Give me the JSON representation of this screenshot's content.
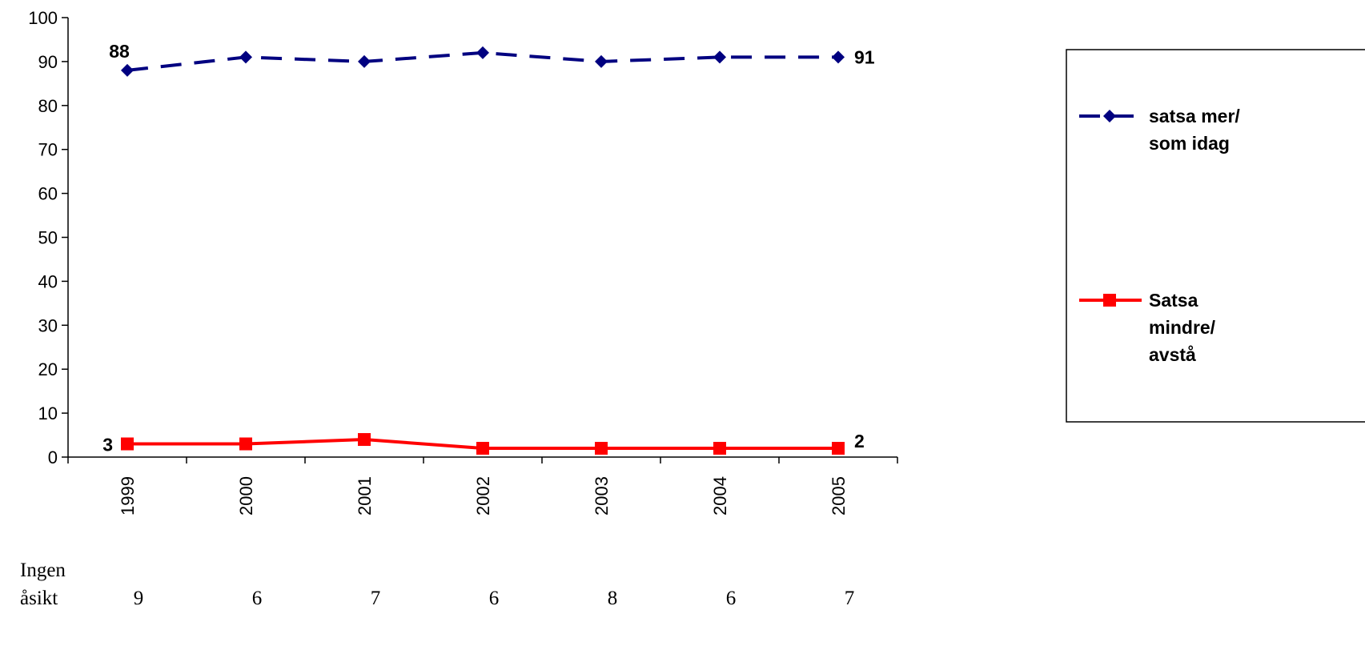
{
  "chart_data": {
    "type": "line",
    "categories": [
      "1999",
      "2000",
      "2001",
      "2002",
      "2003",
      "2004",
      "2005"
    ],
    "ylim": [
      0,
      100
    ],
    "yticks": [
      "0",
      "10",
      "20",
      "30",
      "40",
      "50",
      "60",
      "70",
      "80",
      "90",
      "100"
    ],
    "grid": false,
    "legend_position": "right",
    "series": [
      {
        "name": "satsa mer/ som idag",
        "values": [
          88,
          91,
          90,
          92,
          90,
          91,
          91
        ],
        "color": "#000080",
        "line_style": "dashed",
        "marker": "diamond"
      },
      {
        "name": "Satsa mindre/ avstå",
        "values": [
          3,
          3,
          4,
          2,
          2,
          2,
          2
        ],
        "color": "#ff0000",
        "line_style": "solid",
        "marker": "square"
      }
    ],
    "data_labels": [
      {
        "series": 0,
        "index": 0,
        "text": "88"
      },
      {
        "series": 0,
        "index": 6,
        "text": "91"
      },
      {
        "series": 1,
        "index": 0,
        "text": "3"
      },
      {
        "series": 1,
        "index": 6,
        "text": "2"
      }
    ],
    "legend": {
      "entries": [
        {
          "lines": [
            "satsa mer/",
            "som idag"
          ]
        },
        {
          "lines": [
            "Satsa",
            "mindre/",
            "avstå"
          ]
        }
      ]
    }
  },
  "footer": {
    "label_lines": [
      "Ingen",
      "åsikt"
    ],
    "values": [
      "9",
      "6",
      "7",
      "6",
      "8",
      "6",
      "7"
    ]
  }
}
